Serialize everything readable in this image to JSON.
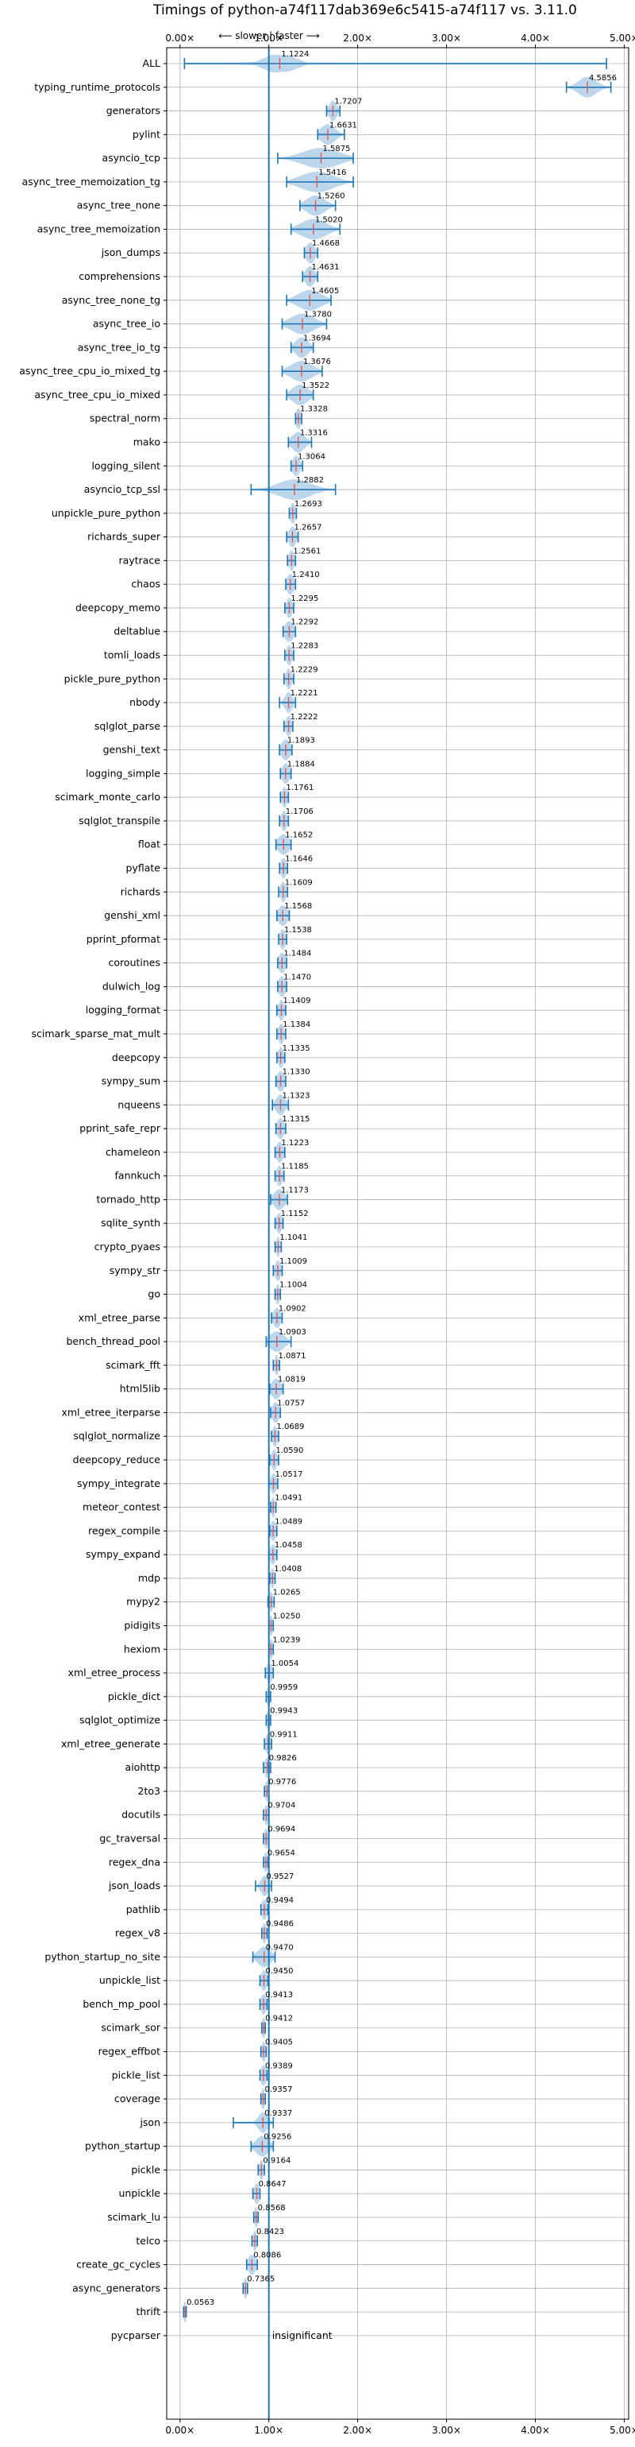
{
  "chart_data": {
    "type": "violin",
    "title": "Timings of python-a74f117dab369e6c5415-a74f117 vs. 3.11.0",
    "direction_label": "⟵ slower | faster ⟶",
    "xlim": [
      -0.15,
      5.05
    ],
    "x_ticks": [
      {
        "value": 0,
        "label": "0.00×"
      },
      {
        "value": 1,
        "label": "1.00×"
      },
      {
        "value": 2,
        "label": "2.00×"
      },
      {
        "value": 3,
        "label": "3.00×"
      },
      {
        "value": 4,
        "label": "4.00×"
      },
      {
        "value": 5,
        "label": "5.00×"
      }
    ],
    "reference_value": 1.0,
    "insignificant_label": "insignificant",
    "benchmarks": [
      {
        "name": "ALL",
        "median": 1.1224,
        "min": 0.05,
        "max": 4.8,
        "spread": 0.15
      },
      {
        "name": "typing_runtime_protocols",
        "median": 4.5856,
        "min": 4.35,
        "max": 4.85,
        "spread": 0.1
      },
      {
        "name": "generators",
        "median": 1.7207,
        "min": 1.65,
        "max": 1.8,
        "spread": 0.04
      },
      {
        "name": "pylint",
        "median": 1.6631,
        "min": 1.55,
        "max": 1.85,
        "spread": 0.08
      },
      {
        "name": "asyncio_tcp",
        "median": 1.5875,
        "min": 1.1,
        "max": 1.95,
        "spread": 0.2
      },
      {
        "name": "async_tree_memoization_tg",
        "median": 1.5416,
        "min": 1.2,
        "max": 1.95,
        "spread": 0.18
      },
      {
        "name": "async_tree_none",
        "median": 1.526,
        "min": 1.35,
        "max": 1.75,
        "spread": 0.1
      },
      {
        "name": "async_tree_memoization",
        "median": 1.502,
        "min": 1.25,
        "max": 1.8,
        "spread": 0.14
      },
      {
        "name": "json_dumps",
        "median": 1.4668,
        "min": 1.4,
        "max": 1.55,
        "spread": 0.05
      },
      {
        "name": "comprehensions",
        "median": 1.4631,
        "min": 1.38,
        "max": 1.55,
        "spread": 0.05
      },
      {
        "name": "async_tree_none_tg",
        "median": 1.4605,
        "min": 1.2,
        "max": 1.7,
        "spread": 0.13
      },
      {
        "name": "async_tree_io",
        "median": 1.378,
        "min": 1.15,
        "max": 1.65,
        "spread": 0.13
      },
      {
        "name": "async_tree_io_tg",
        "median": 1.3694,
        "min": 1.25,
        "max": 1.5,
        "spread": 0.07
      },
      {
        "name": "async_tree_cpu_io_mixed_tg",
        "median": 1.3676,
        "min": 1.15,
        "max": 1.6,
        "spread": 0.12
      },
      {
        "name": "async_tree_cpu_io_mixed",
        "median": 1.3522,
        "min": 1.2,
        "max": 1.5,
        "spread": 0.09
      },
      {
        "name": "spectral_norm",
        "median": 1.3328,
        "min": 1.3,
        "max": 1.37,
        "spread": 0.03
      },
      {
        "name": "mako",
        "median": 1.3316,
        "min": 1.22,
        "max": 1.48,
        "spread": 0.07
      },
      {
        "name": "logging_silent",
        "median": 1.3064,
        "min": 1.25,
        "max": 1.38,
        "spread": 0.04
      },
      {
        "name": "asyncio_tcp_ssl",
        "median": 1.2882,
        "min": 0.8,
        "max": 1.75,
        "spread": 0.18
      },
      {
        "name": "unpickle_pure_python",
        "median": 1.2693,
        "min": 1.23,
        "max": 1.31,
        "spread": 0.03
      },
      {
        "name": "richards_super",
        "median": 1.2657,
        "min": 1.2,
        "max": 1.33,
        "spread": 0.04
      },
      {
        "name": "raytrace",
        "median": 1.2561,
        "min": 1.21,
        "max": 1.3,
        "spread": 0.03
      },
      {
        "name": "chaos",
        "median": 1.241,
        "min": 1.19,
        "max": 1.3,
        "spread": 0.04
      },
      {
        "name": "deepcopy_memo",
        "median": 1.2295,
        "min": 1.18,
        "max": 1.28,
        "spread": 0.03
      },
      {
        "name": "deltablue",
        "median": 1.2292,
        "min": 1.16,
        "max": 1.3,
        "spread": 0.05
      },
      {
        "name": "tomli_loads",
        "median": 1.2283,
        "min": 1.18,
        "max": 1.28,
        "spread": 0.03
      },
      {
        "name": "pickle_pure_python",
        "median": 1.2229,
        "min": 1.17,
        "max": 1.28,
        "spread": 0.03
      },
      {
        "name": "nbody",
        "median": 1.2221,
        "min": 1.12,
        "max": 1.3,
        "spread": 0.04
      },
      {
        "name": "sqlglot_parse",
        "median": 1.2222,
        "min": 1.17,
        "max": 1.27,
        "spread": 0.03
      },
      {
        "name": "genshi_text",
        "median": 1.1893,
        "min": 1.12,
        "max": 1.26,
        "spread": 0.05
      },
      {
        "name": "logging_simple",
        "median": 1.1884,
        "min": 1.13,
        "max": 1.25,
        "spread": 0.04
      },
      {
        "name": "scimark_monte_carlo",
        "median": 1.1761,
        "min": 1.13,
        "max": 1.22,
        "spread": 0.03
      },
      {
        "name": "sqlglot_transpile",
        "median": 1.1706,
        "min": 1.12,
        "max": 1.22,
        "spread": 0.03
      },
      {
        "name": "float",
        "median": 1.1652,
        "min": 1.08,
        "max": 1.25,
        "spread": 0.06
      },
      {
        "name": "pyflate",
        "median": 1.1646,
        "min": 1.12,
        "max": 1.21,
        "spread": 0.03
      },
      {
        "name": "richards",
        "median": 1.1609,
        "min": 1.11,
        "max": 1.21,
        "spread": 0.03
      },
      {
        "name": "genshi_xml",
        "median": 1.1568,
        "min": 1.09,
        "max": 1.23,
        "spread": 0.05
      },
      {
        "name": "pprint_pformat",
        "median": 1.1538,
        "min": 1.11,
        "max": 1.2,
        "spread": 0.03
      },
      {
        "name": "coroutines",
        "median": 1.1484,
        "min": 1.1,
        "max": 1.2,
        "spread": 0.04
      },
      {
        "name": "dulwich_log",
        "median": 1.147,
        "min": 1.1,
        "max": 1.2,
        "spread": 0.04
      },
      {
        "name": "logging_format",
        "median": 1.1409,
        "min": 1.09,
        "max": 1.19,
        "spread": 0.03
      },
      {
        "name": "scimark_sparse_mat_mult",
        "median": 1.1384,
        "min": 1.09,
        "max": 1.19,
        "spread": 0.03
      },
      {
        "name": "deepcopy",
        "median": 1.1335,
        "min": 1.09,
        "max": 1.18,
        "spread": 0.03
      },
      {
        "name": "sympy_sum",
        "median": 1.133,
        "min": 1.08,
        "max": 1.19,
        "spread": 0.04
      },
      {
        "name": "nqueens",
        "median": 1.1323,
        "min": 1.04,
        "max": 1.22,
        "spread": 0.05
      },
      {
        "name": "pprint_safe_repr",
        "median": 1.1315,
        "min": 1.08,
        "max": 1.19,
        "spread": 0.04
      },
      {
        "name": "chameleon",
        "median": 1.1223,
        "min": 1.07,
        "max": 1.18,
        "spread": 0.04
      },
      {
        "name": "fannkuch",
        "median": 1.1185,
        "min": 1.07,
        "max": 1.17,
        "spread": 0.03
      },
      {
        "name": "tornado_http",
        "median": 1.1173,
        "min": 1.02,
        "max": 1.21,
        "spread": 0.06
      },
      {
        "name": "sqlite_synth",
        "median": 1.1152,
        "min": 1.07,
        "max": 1.16,
        "spread": 0.03
      },
      {
        "name": "crypto_pyaes",
        "median": 1.1041,
        "min": 1.07,
        "max": 1.14,
        "spread": 0.02
      },
      {
        "name": "sympy_str",
        "median": 1.1009,
        "min": 1.05,
        "max": 1.15,
        "spread": 0.03
      },
      {
        "name": "go",
        "median": 1.1004,
        "min": 1.07,
        "max": 1.13,
        "spread": 0.02
      },
      {
        "name": "xml_etree_parse",
        "median": 1.0902,
        "min": 1.03,
        "max": 1.15,
        "spread": 0.04
      },
      {
        "name": "bench_thread_pool",
        "median": 1.0903,
        "min": 0.97,
        "max": 1.25,
        "spread": 0.08
      },
      {
        "name": "scimark_fft",
        "median": 1.0871,
        "min": 1.05,
        "max": 1.12,
        "spread": 0.02
      },
      {
        "name": "html5lib",
        "median": 1.0819,
        "min": 1.01,
        "max": 1.16,
        "spread": 0.05
      },
      {
        "name": "xml_etree_iterparse",
        "median": 1.0757,
        "min": 1.02,
        "max": 1.13,
        "spread": 0.04
      },
      {
        "name": "sqlglot_normalize",
        "median": 1.0689,
        "min": 1.03,
        "max": 1.11,
        "spread": 0.03
      },
      {
        "name": "deepcopy_reduce",
        "median": 1.059,
        "min": 1.01,
        "max": 1.11,
        "spread": 0.03
      },
      {
        "name": "sympy_integrate",
        "median": 1.0517,
        "min": 1.0,
        "max": 1.1,
        "spread": 0.03
      },
      {
        "name": "meteor_contest",
        "median": 1.0491,
        "min": 1.02,
        "max": 1.08,
        "spread": 0.02
      },
      {
        "name": "regex_compile",
        "median": 1.0489,
        "min": 1.01,
        "max": 1.09,
        "spread": 0.03
      },
      {
        "name": "sympy_expand",
        "median": 1.0458,
        "min": 1.0,
        "max": 1.09,
        "spread": 0.03
      },
      {
        "name": "mdp",
        "median": 1.0408,
        "min": 1.01,
        "max": 1.07,
        "spread": 0.02
      },
      {
        "name": "mypy2",
        "median": 1.0265,
        "min": 0.99,
        "max": 1.06,
        "spread": 0.02
      },
      {
        "name": "pidigits",
        "median": 1.025,
        "min": 1.0,
        "max": 1.05,
        "spread": 0.02
      },
      {
        "name": "hexiom",
        "median": 1.0239,
        "min": 1.0,
        "max": 1.05,
        "spread": 0.02
      },
      {
        "name": "xml_etree_process",
        "median": 1.0054,
        "min": 0.96,
        "max": 1.05,
        "spread": 0.03
      },
      {
        "name": "pickle_dict",
        "median": 0.9959,
        "min": 0.97,
        "max": 1.02,
        "spread": 0.02
      },
      {
        "name": "sqlglot_optimize",
        "median": 0.9943,
        "min": 0.97,
        "max": 1.02,
        "spread": 0.02
      },
      {
        "name": "xml_etree_generate",
        "median": 0.9911,
        "min": 0.95,
        "max": 1.03,
        "spread": 0.03
      },
      {
        "name": "aiohttp",
        "median": 0.9826,
        "min": 0.94,
        "max": 1.02,
        "spread": 0.03
      },
      {
        "name": "2to3",
        "median": 0.9776,
        "min": 0.95,
        "max": 1.0,
        "spread": 0.02
      },
      {
        "name": "docutils",
        "median": 0.9704,
        "min": 0.94,
        "max": 1.0,
        "spread": 0.02
      },
      {
        "name": "gc_traversal",
        "median": 0.9694,
        "min": 0.94,
        "max": 1.0,
        "spread": 0.02
      },
      {
        "name": "regex_dna",
        "median": 0.9654,
        "min": 0.94,
        "max": 0.99,
        "spread": 0.02
      },
      {
        "name": "json_loads",
        "median": 0.9527,
        "min": 0.85,
        "max": 1.03,
        "spread": 0.04
      },
      {
        "name": "pathlib",
        "median": 0.9494,
        "min": 0.91,
        "max": 0.99,
        "spread": 0.03
      },
      {
        "name": "regex_v8",
        "median": 0.9486,
        "min": 0.92,
        "max": 0.98,
        "spread": 0.02
      },
      {
        "name": "python_startup_no_site",
        "median": 0.947,
        "min": 0.82,
        "max": 1.07,
        "spread": 0.07
      },
      {
        "name": "unpickle_list",
        "median": 0.945,
        "min": 0.9,
        "max": 0.99,
        "spread": 0.03
      },
      {
        "name": "bench_mp_pool",
        "median": 0.9413,
        "min": 0.9,
        "max": 0.98,
        "spread": 0.03
      },
      {
        "name": "scimark_sor",
        "median": 0.9412,
        "min": 0.92,
        "max": 0.96,
        "spread": 0.02
      },
      {
        "name": "regex_effbot",
        "median": 0.9405,
        "min": 0.91,
        "max": 0.97,
        "spread": 0.02
      },
      {
        "name": "pickle_list",
        "median": 0.9389,
        "min": 0.9,
        "max": 0.98,
        "spread": 0.03
      },
      {
        "name": "coverage",
        "median": 0.9357,
        "min": 0.91,
        "max": 0.96,
        "spread": 0.02
      },
      {
        "name": "json",
        "median": 0.9337,
        "min": 0.6,
        "max": 1.05,
        "spread": 0.05
      },
      {
        "name": "python_startup",
        "median": 0.9256,
        "min": 0.8,
        "max": 1.05,
        "spread": 0.07
      },
      {
        "name": "pickle",
        "median": 0.9164,
        "min": 0.88,
        "max": 0.95,
        "spread": 0.02
      },
      {
        "name": "unpickle",
        "median": 0.8647,
        "min": 0.82,
        "max": 0.9,
        "spread": 0.03
      },
      {
        "name": "scimark_lu",
        "median": 0.8568,
        "min": 0.83,
        "max": 0.88,
        "spread": 0.02
      },
      {
        "name": "telco",
        "median": 0.8423,
        "min": 0.81,
        "max": 0.87,
        "spread": 0.02
      },
      {
        "name": "create_gc_cycles",
        "median": 0.8086,
        "min": 0.75,
        "max": 0.87,
        "spread": 0.04
      },
      {
        "name": "async_generators",
        "median": 0.7365,
        "min": 0.71,
        "max": 0.76,
        "spread": 0.02
      },
      {
        "name": "thrift",
        "median": 0.0563,
        "min": 0.04,
        "max": 0.07,
        "spread": 0.01
      },
      {
        "name": "pycparser",
        "median": null,
        "min": null,
        "max": null,
        "spread": null
      }
    ],
    "colors": {
      "violin": "#a6c8e6",
      "whisker": "#1f77b4",
      "median": "#e15759",
      "reference": "#1f77b4",
      "grid": "#b0b0b0"
    },
    "grid": true
  }
}
